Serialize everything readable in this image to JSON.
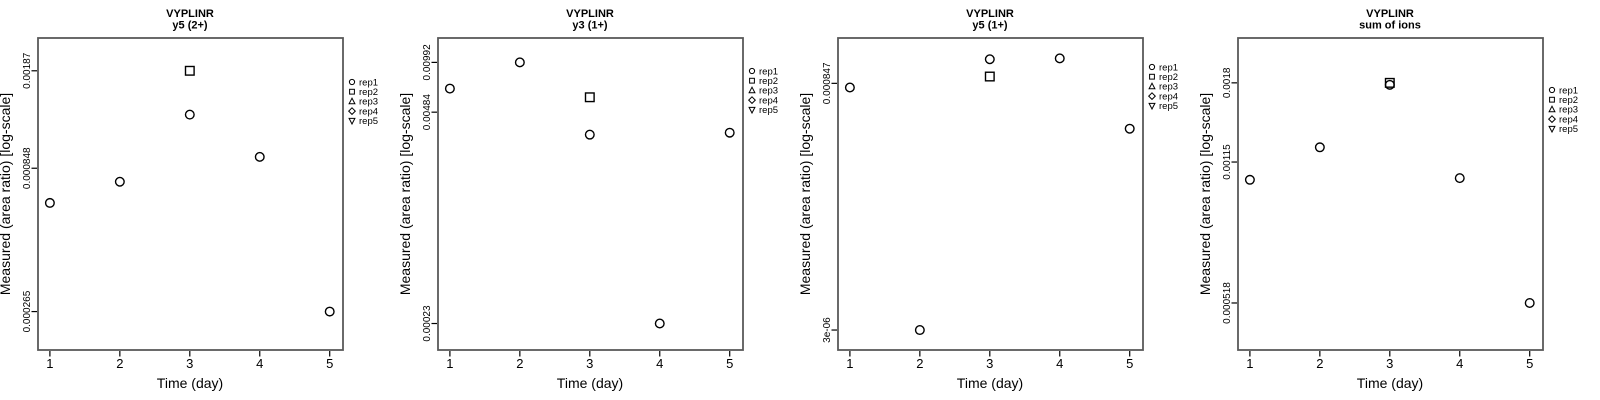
{
  "figure": {
    "background": "#ffffff",
    "marker_color": "#000000",
    "box_color": "#595959",
    "legend": {
      "position": "right",
      "entries": [
        {
          "name": "rep1",
          "symbol": "circle"
        },
        {
          "name": "rep2",
          "symbol": "square"
        },
        {
          "name": "rep3",
          "symbol": "triangle-up"
        },
        {
          "name": "rep4",
          "symbol": "diamond"
        },
        {
          "name": "rep5",
          "symbol": "triangle-down"
        }
      ]
    }
  },
  "chart_data": [
    {
      "type": "scatter",
      "title": "VYPLINR",
      "subtitle": "y5 (2+)",
      "xlabel": "Time (day)",
      "ylabel": "Measured (area ratio) [log-scale]",
      "x_ticks": [
        1,
        2,
        3,
        4,
        5
      ],
      "xlim": [
        0.83,
        5.19
      ],
      "y_scale": "log",
      "ylim": [
        0.000194,
        0.00244
      ],
      "y_ticks": [
        {
          "value": 0.00187,
          "label": "0.00187"
        },
        {
          "value": 0.000848,
          "label": "0.000848"
        },
        {
          "value": 0.000265,
          "label": "0.000265"
        }
      ],
      "series": [
        {
          "name": "rep1",
          "symbol": "circle",
          "points": [
            [
              1,
              0.00064
            ],
            [
              2,
              0.00076
            ],
            [
              3,
              0.00131
            ],
            [
              4,
              0.00093
            ],
            [
              5,
              0.000265
            ]
          ]
        },
        {
          "name": "rep2",
          "symbol": "square",
          "points": [
            [
              3,
              0.00187
            ]
          ]
        }
      ]
    },
    {
      "type": "scatter",
      "title": "VYPLINR",
      "subtitle": "y3 (1+)",
      "xlabel": "Time (day)",
      "ylabel": "Measured (area ratio) [log-scale]",
      "x_ticks": [
        1,
        2,
        3,
        4,
        5
      ],
      "xlim": [
        0.83,
        5.19
      ],
      "y_scale": "log",
      "ylim": [
        0.000157,
        0.0141
      ],
      "y_ticks": [
        {
          "value": 0.00992,
          "label": "0.00992"
        },
        {
          "value": 0.00484,
          "label": "0.00484"
        },
        {
          "value": 0.00023,
          "label": "0.00023"
        }
      ],
      "series": [
        {
          "name": "rep1",
          "symbol": "circle",
          "points": [
            [
              1,
              0.0068
            ],
            [
              2,
              0.00992
            ],
            [
              3,
              0.0035
            ],
            [
              4,
              0.00023
            ],
            [
              5,
              0.0036
            ]
          ]
        },
        {
          "name": "rep2",
          "symbol": "square",
          "points": [
            [
              3,
              0.006
            ]
          ]
        }
      ]
    },
    {
      "type": "scatter",
      "title": "VYPLINR",
      "subtitle": "y5 (1+)",
      "xlabel": "Time (day)",
      "ylabel": "Measured (area ratio) [log-scale]",
      "x_ticks": [
        1,
        2,
        3,
        4,
        5
      ],
      "xlim": [
        0.83,
        5.19
      ],
      "y_scale": "log",
      "ylim": [
        1.9e-06,
        0.00239
      ],
      "y_ticks": [
        {
          "value": 0.000847,
          "label": "0.000847"
        },
        {
          "value": 3e-06,
          "label": "3e-06"
        }
      ],
      "series": [
        {
          "name": "rep1",
          "symbol": "circle",
          "points": [
            [
              1,
              0.00077
            ],
            [
              2,
              3e-06
            ],
            [
              3,
              0.00147
            ],
            [
              4,
              0.0015
            ],
            [
              5,
              0.0003
            ]
          ]
        },
        {
          "name": "rep2",
          "symbol": "square",
          "points": [
            [
              3,
              0.00099
            ]
          ]
        }
      ]
    },
    {
      "type": "scatter",
      "title": "VYPLINR",
      "subtitle": "sum of ions",
      "xlabel": "Time (day)",
      "ylabel": "Measured (area ratio) [log-scale]",
      "x_ticks": [
        1,
        2,
        3,
        4,
        5
      ],
      "xlim": [
        0.83,
        5.19
      ],
      "y_scale": "log",
      "ylim": [
        0.000397,
        0.00232
      ],
      "y_ticks": [
        {
          "value": 0.0018,
          "label": "0.0018"
        },
        {
          "value": 0.00115,
          "label": "0.00115"
        },
        {
          "value": 0.000518,
          "label": "0.000518"
        }
      ],
      "series": [
        {
          "name": "rep1",
          "symbol": "circle",
          "points": [
            [
              1,
              0.00104
            ],
            [
              2,
              0.00125
            ],
            [
              3,
              0.00178
            ],
            [
              4,
              0.00105
            ],
            [
              5,
              0.000518
            ]
          ]
        },
        {
          "name": "rep2",
          "symbol": "square",
          "points": [
            [
              3,
              0.0018
            ]
          ]
        }
      ]
    }
  ]
}
